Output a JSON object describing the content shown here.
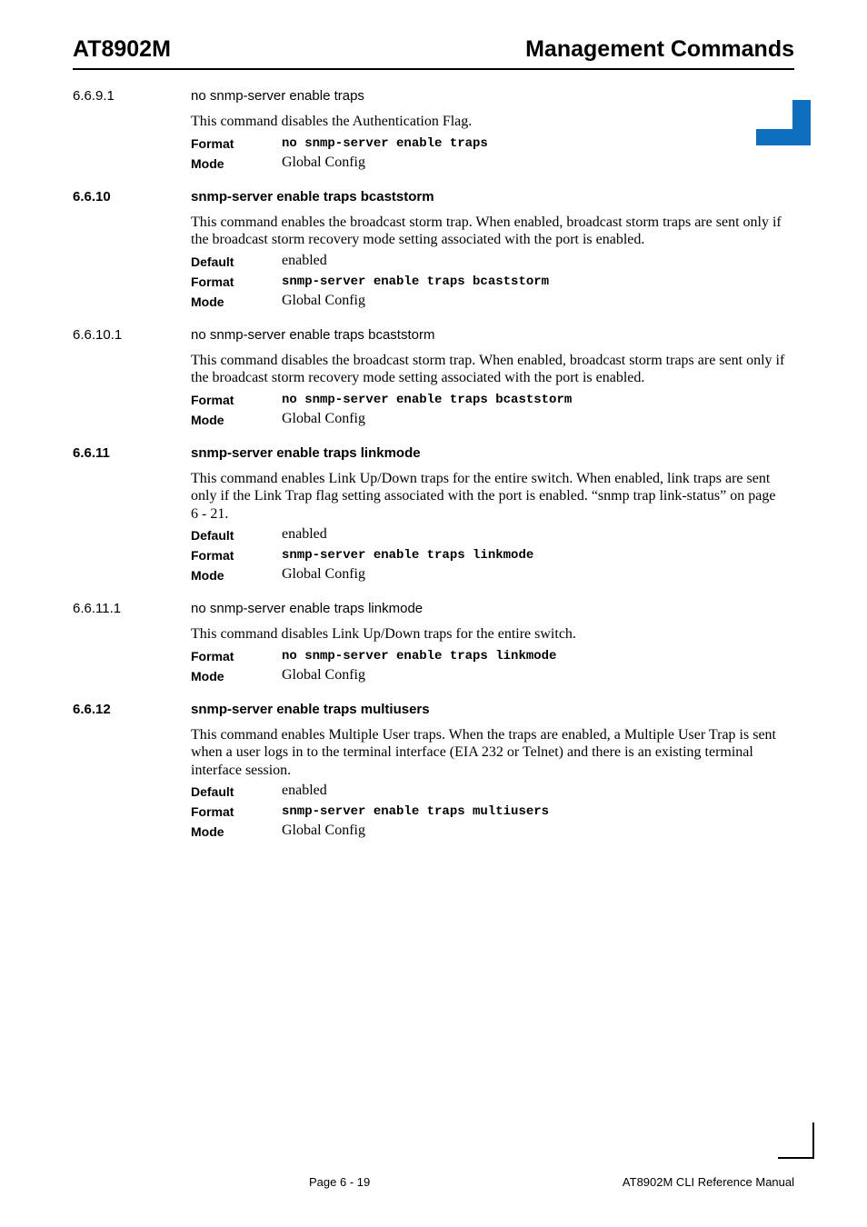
{
  "header": {
    "left": "AT8902M",
    "right": "Management Commands"
  },
  "sections": [
    {
      "number": "6.6.9.1",
      "number_bold": false,
      "title": "no snmp-server enable traps",
      "title_bold": false,
      "para": "This command disables the Authentication Flag.",
      "rows": [
        {
          "key": "Format",
          "valType": "mono",
          "val": "no snmp-server enable traps"
        },
        {
          "key": "Mode",
          "valType": "serif",
          "val": "Global Config"
        }
      ]
    },
    {
      "number": "6.6.10",
      "number_bold": true,
      "title": "snmp-server enable traps bcaststorm",
      "title_bold": true,
      "para": "This command enables the broadcast storm trap. When enabled, broadcast storm traps are sent only if the broadcast storm recovery mode setting associated with the port is enabled.",
      "rows": [
        {
          "key": "Default",
          "valType": "serif",
          "val": "enabled"
        },
        {
          "key": "Format",
          "valType": "mono",
          "val": "snmp-server enable traps bcaststorm"
        },
        {
          "key": "Mode",
          "valType": "serif",
          "val": "Global Config"
        }
      ]
    },
    {
      "number": "6.6.10.1",
      "number_bold": false,
      "title": "no snmp-server enable traps bcaststorm",
      "title_bold": false,
      "para": "This command disables the broadcast storm trap. When enabled, broadcast storm traps are sent only if the broadcast storm recovery mode setting associated with the port is enabled.",
      "rows": [
        {
          "key": "Format",
          "valType": "mono",
          "val": "no snmp-server enable traps bcaststorm"
        },
        {
          "key": "Mode",
          "valType": "serif",
          "val": "Global Config"
        }
      ]
    },
    {
      "number": "6.6.11",
      "number_bold": true,
      "title": "snmp-server enable traps linkmode",
      "title_bold": true,
      "para": "This command enables Link Up/Down traps for the entire switch. When enabled, link traps are sent only if the Link Trap flag setting associated with the port is enabled. “snmp trap link-status” on page 6 - 21.",
      "rows": [
        {
          "key": "Default",
          "valType": "serif",
          "val": "enabled"
        },
        {
          "key": "Format",
          "valType": "mono",
          "val": "snmp-server enable traps linkmode"
        },
        {
          "key": "Mode",
          "valType": "serif",
          "val": "Global Config"
        }
      ]
    },
    {
      "number": "6.6.11.1",
      "number_bold": false,
      "title": "no snmp-server enable traps linkmode",
      "title_bold": false,
      "para": "This command disables Link Up/Down traps for the entire switch.",
      "rows": [
        {
          "key": "Format",
          "valType": "mono",
          "val": "no snmp-server enable traps linkmode"
        },
        {
          "key": "Mode",
          "valType": "serif",
          "val": "Global Config"
        }
      ]
    },
    {
      "number": "6.6.12",
      "number_bold": true,
      "title": "snmp-server enable traps multiusers",
      "title_bold": true,
      "para": "This command enables Multiple User traps. When the traps are enabled, a Multiple User Trap is sent when a user logs in to the terminal interface (EIA 232 or Telnet) and there is an existing terminal interface session.",
      "rows": [
        {
          "key": "Default",
          "valType": "serif",
          "val": "enabled"
        },
        {
          "key": "Format",
          "valType": "mono",
          "val": "snmp-server enable traps multiusers"
        },
        {
          "key": "Mode",
          "valType": "serif",
          "val": "Global Config"
        }
      ]
    }
  ],
  "footer": {
    "left": "Page 6 - 19",
    "right": "AT8902M CLI Reference Manual"
  },
  "colors": {
    "accent": "#0f6fbf"
  }
}
